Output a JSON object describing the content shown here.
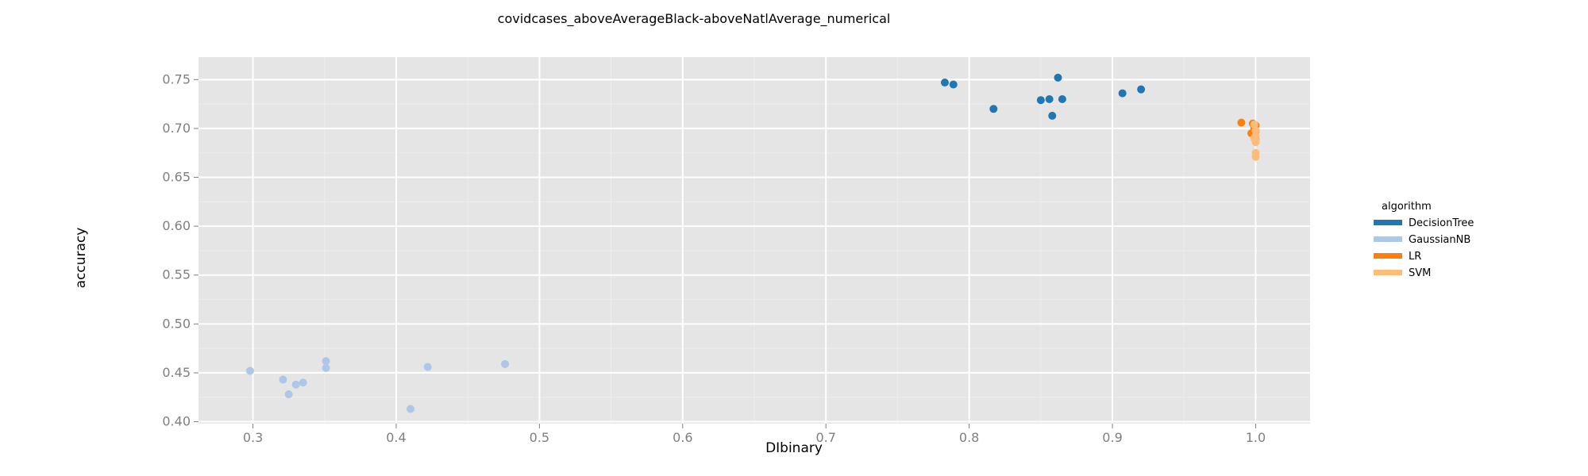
{
  "chart_data": {
    "type": "scatter",
    "title": "covidcases_aboveAverageBlack-aboveNatlAverage_numerical",
    "xlabel": "DIbinary",
    "ylabel": "accuracy",
    "xlim": [
      0.262,
      1.038
    ],
    "ylim": [
      0.398,
      0.773
    ],
    "x_ticks": [
      0.3,
      0.4,
      0.5,
      0.6,
      0.7,
      0.8,
      0.9,
      1.0
    ],
    "x_tick_labels": [
      "0.3",
      "0.4",
      "0.5",
      "0.6",
      "0.7",
      "0.8",
      "0.9",
      "1.0"
    ],
    "y_ticks": [
      0.4,
      0.45,
      0.5,
      0.55,
      0.6,
      0.65,
      0.7,
      0.75
    ],
    "y_tick_labels": [
      "0.40",
      "0.45",
      "0.50",
      "0.55",
      "0.60",
      "0.65",
      "0.70",
      "0.75"
    ],
    "grid": true,
    "legend": {
      "title": "algorithm",
      "position": "right"
    },
    "series": [
      {
        "name": "DecisionTree",
        "color": "#1f77b4",
        "points": [
          {
            "x": 0.783,
            "y": 0.747
          },
          {
            "x": 0.789,
            "y": 0.745
          },
          {
            "x": 0.817,
            "y": 0.72
          },
          {
            "x": 0.85,
            "y": 0.729
          },
          {
            "x": 0.856,
            "y": 0.73
          },
          {
            "x": 0.858,
            "y": 0.713
          },
          {
            "x": 0.862,
            "y": 0.752
          },
          {
            "x": 0.865,
            "y": 0.73
          },
          {
            "x": 0.907,
            "y": 0.736
          },
          {
            "x": 0.92,
            "y": 0.74
          }
        ]
      },
      {
        "name": "GaussianNB",
        "color": "#aec7e8",
        "points": [
          {
            "x": 0.298,
            "y": 0.452
          },
          {
            "x": 0.321,
            "y": 0.443
          },
          {
            "x": 0.325,
            "y": 0.428
          },
          {
            "x": 0.33,
            "y": 0.438
          },
          {
            "x": 0.335,
            "y": 0.44
          },
          {
            "x": 0.351,
            "y": 0.462
          },
          {
            "x": 0.351,
            "y": 0.455
          },
          {
            "x": 0.41,
            "y": 0.413
          },
          {
            "x": 0.422,
            "y": 0.456
          },
          {
            "x": 0.476,
            "y": 0.459
          }
        ]
      },
      {
        "name": "LR",
        "color": "#ff7f0e",
        "points": [
          {
            "x": 0.99,
            "y": 0.706
          },
          {
            "x": 0.997,
            "y": 0.695
          },
          {
            "x": 0.998,
            "y": 0.705
          },
          {
            "x": 0.999,
            "y": 0.7
          },
          {
            "x": 0.999,
            "y": 0.692
          },
          {
            "x": 1.0,
            "y": 0.689
          },
          {
            "x": 1.0,
            "y": 0.703
          },
          {
            "x": 1.0,
            "y": 0.697
          }
        ]
      },
      {
        "name": "SVM",
        "color": "#ffbb78",
        "points": [
          {
            "x": 0.999,
            "y": 0.704
          },
          {
            "x": 1.0,
            "y": 0.698
          },
          {
            "x": 1.0,
            "y": 0.693
          },
          {
            "x": 1.0,
            "y": 0.688
          },
          {
            "x": 1.0,
            "y": 0.686
          },
          {
            "x": 1.0,
            "y": 0.675
          },
          {
            "x": 1.0,
            "y": 0.671
          },
          {
            "x": 0.999,
            "y": 0.69
          }
        ]
      }
    ]
  }
}
